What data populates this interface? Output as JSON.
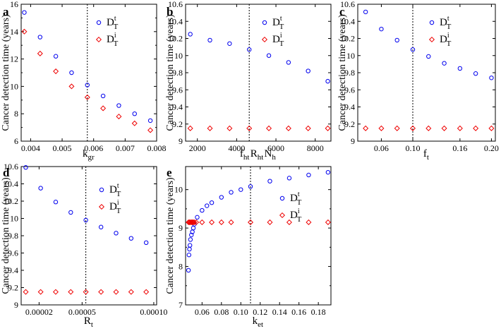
{
  "figure": {
    "series_colors": {
      "Dt": "#0000ee",
      "Di": "#ee0000"
    }
  },
  "chart_data": [
    {
      "type": "scatter",
      "panel_label": "a",
      "ylabel": "Cancer detection time (years)",
      "xlabel": {
        "base": "k",
        "sub": "gr",
        "sup": ""
      },
      "xlim": [
        0.0037,
        0.008
      ],
      "ylim": [
        6,
        16
      ],
      "xticks": [
        0.004,
        0.005,
        0.006,
        0.007,
        0.008
      ],
      "xtick_labels": [
        "0.004",
        "0.005",
        "0.006",
        "0.007",
        "0.008"
      ],
      "yticks": [
        6,
        8,
        10,
        12,
        14,
        16
      ],
      "ytick_labels": [
        "6",
        "8",
        "10",
        "12",
        "14",
        "16"
      ],
      "vline": 0.0058,
      "legend_position": "top-right",
      "series": [
        {
          "name": "Dt",
          "legend_base": "D",
          "legend_sub": "T",
          "legend_sup": "t",
          "marker": "circle",
          "x": [
            0.0038,
            0.0043,
            0.0048,
            0.0053,
            0.0058,
            0.0063,
            0.0068,
            0.0073,
            0.0078
          ],
          "y": [
            15.4,
            13.6,
            12.2,
            11.0,
            10.1,
            9.3,
            8.6,
            8.0,
            7.5
          ]
        },
        {
          "name": "Di",
          "legend_base": "D",
          "legend_sub": "T",
          "legend_sup": "i",
          "marker": "diamond",
          "x": [
            0.0038,
            0.0043,
            0.0048,
            0.0053,
            0.0058,
            0.0063,
            0.0068,
            0.0073,
            0.0078
          ],
          "y": [
            14.0,
            12.4,
            11.1,
            10.0,
            9.2,
            8.4,
            7.8,
            7.3,
            6.8
          ]
        }
      ]
    },
    {
      "type": "scatter",
      "panel_label": "b",
      "ylabel": "Cancer detection time (years)",
      "xlabel": {
        "base": "f",
        "sub": "ht",
        "sup": "",
        "parts": [
          {
            "base": "f",
            "sub": "ht"
          },
          {
            "base": "R",
            "sub": "ht"
          },
          {
            "base": "N",
            "sub": "h"
          }
        ]
      },
      "xlim": [
        1400,
        8800
      ],
      "ylim": [
        9.0,
        10.6
      ],
      "xticks": [
        2000,
        4000,
        6000,
        8000
      ],
      "xtick_labels": [
        "2000",
        "4000",
        "6000",
        "8000"
      ],
      "yticks": [
        9.0,
        9.2,
        9.4,
        9.6,
        9.8,
        10.0,
        10.2,
        10.4,
        10.6
      ],
      "ytick_labels": [
        "9",
        "9.2",
        "9.4",
        "9.6",
        "9.8",
        "10",
        "10.2",
        "10.4",
        "10.6"
      ],
      "vline": 4640,
      "legend_position": "top-right",
      "series": [
        {
          "name": "Dt",
          "legend_base": "D",
          "legend_sub": "T",
          "legend_sup": "t",
          "marker": "circle",
          "x": [
            1640,
            2640,
            3640,
            4640,
            5640,
            6640,
            7640,
            8640
          ],
          "y": [
            10.25,
            10.18,
            10.14,
            10.07,
            10.0,
            9.92,
            9.82,
            9.7
          ]
        },
        {
          "name": "Di",
          "legend_base": "D",
          "legend_sub": "T",
          "legend_sup": "i",
          "marker": "diamond",
          "x": [
            1640,
            2640,
            3640,
            4640,
            5640,
            6640,
            7640,
            8640
          ],
          "y": [
            9.15,
            9.15,
            9.15,
            9.15,
            9.15,
            9.15,
            9.15,
            9.15
          ]
        }
      ]
    },
    {
      "type": "scatter",
      "panel_label": "c",
      "ylabel": "Cancer detection time (years)",
      "xlabel": {
        "base": "f",
        "sub": "t",
        "sup": ""
      },
      "xlim": [
        0.03,
        0.205
      ],
      "ylim": [
        9.0,
        10.6
      ],
      "xticks": [
        0.06,
        0.1,
        0.16,
        0.2
      ],
      "xtick_labels": [
        "0.06",
        "0.10",
        "0.16",
        "0.20"
      ],
      "yticks": [
        9.0,
        9.2,
        9.4,
        9.6,
        9.8,
        10.0,
        10.2,
        10.4,
        10.6
      ],
      "ytick_labels": [
        "9",
        "9.2",
        "9.4",
        "9.6",
        "9.8",
        "10",
        "10.2",
        "10.4",
        "10.6"
      ],
      "vline": 0.1,
      "legend_position": "top-right",
      "series": [
        {
          "name": "Dt",
          "legend_base": "D",
          "legend_sub": "T",
          "legend_sup": "t",
          "marker": "circle",
          "x": [
            0.04,
            0.06,
            0.08,
            0.1,
            0.12,
            0.14,
            0.16,
            0.18,
            0.2
          ],
          "y": [
            10.51,
            10.31,
            10.18,
            10.07,
            9.99,
            9.91,
            9.85,
            9.79,
            9.74
          ]
        },
        {
          "name": "Di",
          "legend_base": "D",
          "legend_sub": "T",
          "legend_sup": "i",
          "marker": "diamond",
          "x": [
            0.04,
            0.06,
            0.08,
            0.1,
            0.12,
            0.14,
            0.16,
            0.18,
            0.2
          ],
          "y": [
            9.15,
            9.15,
            9.15,
            9.15,
            9.15,
            9.15,
            9.15,
            9.15,
            9.15
          ]
        }
      ]
    },
    {
      "type": "scatter",
      "panel_label": "d",
      "ylabel": "Cancer detection time (years)",
      "xlabel": {
        "base": "R",
        "sub": "t",
        "sup": ""
      },
      "xlim": [
        7.5e-06,
        0.000102
      ],
      "ylim": [
        9.0,
        10.6
      ],
      "xticks": [
        2e-05,
        5e-05,
        0.0001
      ],
      "xtick_labels": [
        "0.00002",
        "0.00005",
        "0.00010"
      ],
      "yticks": [
        9.0,
        9.2,
        9.4,
        9.6,
        9.8,
        10.0,
        10.2,
        10.4,
        10.6
      ],
      "ytick_labels": [
        "9",
        "9.2",
        "9.4",
        "9.6",
        "9.8",
        "10",
        "10.2",
        "10.4",
        "10.6"
      ],
      "vline": 5.26e-05,
      "legend_position": "top-right",
      "series": [
        {
          "name": "Dt",
          "legend_base": "D",
          "legend_sub": "T",
          "legend_sup": "t",
          "marker": "circle",
          "x": [
            1.07e-05,
            2.11e-05,
            3.16e-05,
            4.21e-05,
            5.26e-05,
            6.32e-05,
            7.37e-05,
            8.42e-05,
            9.47e-05
          ],
          "y": [
            10.59,
            10.35,
            10.19,
            10.07,
            9.98,
            9.9,
            9.83,
            9.77,
            9.72
          ]
        },
        {
          "name": "Di",
          "legend_base": "D",
          "legend_sub": "T",
          "legend_sup": "i",
          "marker": "diamond",
          "x": [
            1.07e-05,
            2.11e-05,
            3.16e-05,
            4.21e-05,
            5.26e-05,
            6.32e-05,
            7.37e-05,
            8.42e-05,
            9.47e-05
          ],
          "y": [
            9.15,
            9.15,
            9.15,
            9.15,
            9.15,
            9.15,
            9.15,
            9.15,
            9.15
          ]
        }
      ]
    },
    {
      "type": "scatter",
      "panel_label": "e",
      "ylabel": "Cancer detection time (years)",
      "xlabel": {
        "base": "k",
        "sub": "et",
        "sup": ""
      },
      "xlim": [
        0.043,
        0.193
      ],
      "ylim": [
        7,
        10.6
      ],
      "xticks": [
        0.06,
        0.08,
        0.1,
        0.12,
        0.14,
        0.16,
        0.18
      ],
      "xtick_labels": [
        "0.06",
        "0.08",
        "0.10",
        "0.12",
        "0.14",
        "0.16",
        "0.18"
      ],
      "yticks": [
        7,
        8,
        9,
        10
      ],
      "ytick_labels": [
        "7",
        "8",
        "9",
        "10"
      ],
      "vline": 0.11,
      "legend_position": "right",
      "series": [
        {
          "name": "Dt",
          "legend_base": "D",
          "legend_sub": "T",
          "legend_sup": "t",
          "marker": "circle",
          "x": [
            0.046,
            0.0465,
            0.047,
            0.0475,
            0.048,
            0.049,
            0.05,
            0.051,
            0.052,
            0.055,
            0.06,
            0.065,
            0.07,
            0.08,
            0.09,
            0.1,
            0.11,
            0.13,
            0.15,
            0.17,
            0.19
          ],
          "y": [
            7.9,
            8.3,
            8.45,
            8.55,
            8.7,
            8.82,
            8.9,
            9.0,
            9.1,
            9.28,
            9.46,
            9.58,
            9.66,
            9.8,
            9.93,
            10.0,
            10.08,
            10.22,
            10.3,
            10.38,
            10.45
          ]
        },
        {
          "name": "Di",
          "legend_base": "D",
          "legend_sub": "T",
          "legend_sup": "i",
          "marker": "diamond",
          "x": [
            0.046,
            0.047,
            0.048,
            0.049,
            0.05,
            0.051,
            0.052,
            0.054,
            0.06,
            0.07,
            0.08,
            0.09,
            0.11,
            0.13,
            0.15,
            0.17,
            0.19
          ],
          "y": [
            9.15,
            9.15,
            9.15,
            9.15,
            9.15,
            9.15,
            9.15,
            9.15,
            9.15,
            9.15,
            9.15,
            9.15,
            9.15,
            9.15,
            9.15,
            9.15,
            9.15
          ]
        }
      ]
    }
  ]
}
